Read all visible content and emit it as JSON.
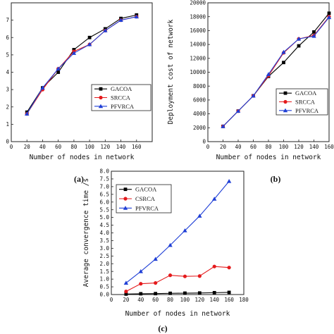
{
  "chart_data": [
    {
      "type": "line",
      "caption": "(a)",
      "xlabel": "Number of nodes in network",
      "ylabel": "",
      "xlim": [
        0,
        180
      ],
      "ylim": [
        0,
        8
      ],
      "xticks": [
        0,
        20,
        40,
        60,
        80,
        100,
        120,
        140,
        160
      ],
      "yticks": [
        0,
        1,
        2,
        3,
        4,
        5,
        6,
        7
      ],
      "legend_position": "lower-right",
      "x": [
        20,
        40,
        60,
        80,
        100,
        120,
        140,
        160
      ],
      "series": [
        {
          "name": "GACOA",
          "marker": "square",
          "color": "#000000",
          "values": [
            1.7,
            3.1,
            4.0,
            5.3,
            6.0,
            6.5,
            7.1,
            7.3
          ]
        },
        {
          "name": "SRCCA",
          "marker": "circle",
          "color": "#e41a1c",
          "values": [
            1.6,
            3.0,
            4.2,
            5.2,
            5.6,
            6.4,
            7.0,
            7.2
          ]
        },
        {
          "name": "PFVRCA",
          "marker": "triangle",
          "color": "#1f3fd6",
          "values": [
            1.6,
            3.1,
            4.2,
            5.1,
            5.6,
            6.4,
            7.0,
            7.2
          ]
        }
      ]
    },
    {
      "type": "line",
      "caption": "(b)",
      "xlabel": "Number of nodes in network",
      "ylabel": "Deployment cost of network",
      "xlim": [
        0,
        160
      ],
      "ylim": [
        0,
        20000
      ],
      "xticks": [
        0,
        20,
        40,
        60,
        80,
        100,
        120,
        140,
        160
      ],
      "yticks": [
        0,
        2000,
        4000,
        6000,
        8000,
        10000,
        12000,
        14000,
        16000,
        18000,
        20000
      ],
      "legend_position": "lower-right",
      "x": [
        20,
        40,
        60,
        80,
        100,
        120,
        140,
        160
      ],
      "series": [
        {
          "name": "GACOA",
          "marker": "square",
          "color": "#000000",
          "values": [
            2200,
            4400,
            6600,
            9400,
            11400,
            13800,
            15800,
            18500
          ]
        },
        {
          "name": "SRCCA",
          "marker": "circle",
          "color": "#e41a1c",
          "values": [
            2200,
            4400,
            6600,
            9500,
            12800,
            14800,
            15300,
            18000
          ]
        },
        {
          "name": "PFVRCA",
          "marker": "triangle",
          "color": "#1f3fd6",
          "values": [
            2200,
            4400,
            6600,
            9700,
            12900,
            14800,
            15200,
            17900
          ]
        }
      ]
    },
    {
      "type": "line",
      "caption": "(c)",
      "xlabel": "Number of nodes in network",
      "ylabel": "Average convergence time /s",
      "xlim": [
        0,
        180
      ],
      "ylim": [
        0,
        8.0
      ],
      "xticks": [
        0,
        20,
        40,
        60,
        80,
        100,
        120,
        140,
        160,
        180
      ],
      "yticks": [
        "0.0",
        "0.5",
        "1.0",
        "1.5",
        "2.0",
        "2.5",
        "3.0",
        "3.5",
        "4.0",
        "4.5",
        "5.0",
        "5.5",
        "6.0",
        "6.5",
        "7.0",
        "7.5",
        "8.0"
      ],
      "legend_position": "top-left",
      "x": [
        20,
        40,
        60,
        80,
        100,
        120,
        140,
        160
      ],
      "series": [
        {
          "name": "GACOA",
          "marker": "square",
          "color": "#000000",
          "values": [
            0.03,
            0.05,
            0.06,
            0.08,
            0.09,
            0.1,
            0.12,
            0.14
          ]
        },
        {
          "name": "CSRCA",
          "marker": "circle",
          "color": "#e41a1c",
          "values": [
            0.2,
            0.7,
            0.75,
            1.25,
            1.18,
            1.2,
            1.82,
            1.75
          ]
        },
        {
          "name": "PFVRCA",
          "marker": "triangle",
          "color": "#1f3fd6",
          "values": [
            0.75,
            1.5,
            2.3,
            3.2,
            4.15,
            5.1,
            6.2,
            7.35
          ]
        }
      ]
    }
  ]
}
